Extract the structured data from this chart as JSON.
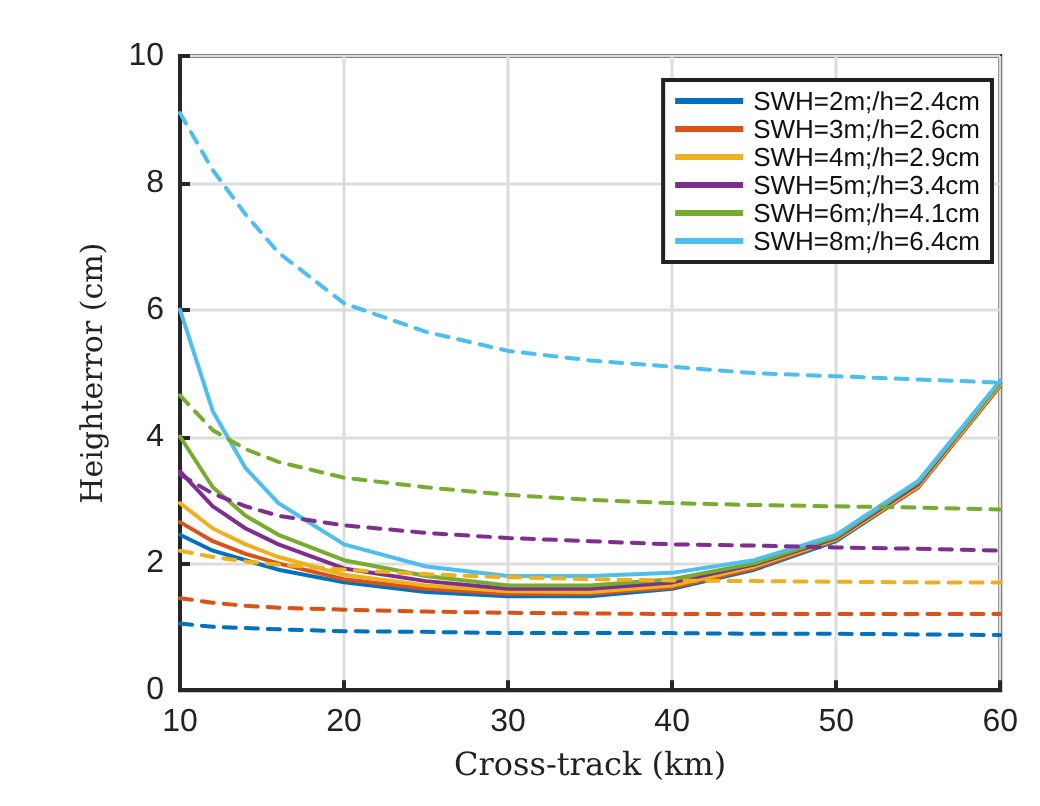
{
  "chart_data": {
    "type": "line",
    "xlabel": "Cross-track (km)",
    "ylabel": "Heighterror (cm)",
    "x": [
      10,
      12,
      14,
      16,
      20,
      25,
      30,
      35,
      40,
      45,
      50,
      55,
      60
    ],
    "xlim": [
      10,
      60
    ],
    "xticks": [
      10,
      20,
      30,
      40,
      50,
      60
    ],
    "ylim": [
      0,
      10
    ],
    "yticks": [
      0,
      2,
      4,
      6,
      8,
      10
    ],
    "grid": true,
    "legend": "top right",
    "marker": "none",
    "series": [
      {
        "name": "SWH=2m;/h=2.4cm",
        "color": "#0072bd",
        "line_style": "solid",
        "values": [
          2.45,
          2.2,
          2.05,
          1.9,
          1.7,
          1.55,
          1.48,
          1.48,
          1.6,
          1.9,
          2.35,
          3.2,
          4.8
        ]
      },
      {
        "name": "SWH=3m;/h=2.6cm",
        "color": "#d95319",
        "line_style": "solid",
        "values": [
          2.65,
          2.35,
          2.15,
          2.0,
          1.75,
          1.6,
          1.52,
          1.52,
          1.62,
          1.92,
          2.37,
          3.2,
          4.8
        ]
      },
      {
        "name": "SWH=4m;/h=2.9cm",
        "color": "#edb120",
        "line_style": "solid",
        "values": [
          2.95,
          2.55,
          2.3,
          2.1,
          1.82,
          1.65,
          1.56,
          1.55,
          1.65,
          1.95,
          2.38,
          3.22,
          4.82
        ]
      },
      {
        "name": "SWH=5m;/h=3.4cm",
        "color": "#7e2f8e",
        "line_style": "solid",
        "values": [
          3.45,
          2.9,
          2.55,
          2.3,
          1.92,
          1.72,
          1.6,
          1.6,
          1.7,
          1.98,
          2.4,
          3.25,
          4.85
        ]
      },
      {
        "name": "SWH=6m;/h=4.1cm",
        "color": "#77ac30",
        "line_style": "solid",
        "values": [
          4.0,
          3.2,
          2.75,
          2.45,
          2.05,
          1.8,
          1.65,
          1.65,
          1.75,
          2.0,
          2.42,
          3.28,
          4.85
        ]
      },
      {
        "name": "SWH=8m;/h=6.4cm",
        "color": "#4dbeee",
        "line_style": "solid",
        "values": [
          6.0,
          4.4,
          3.5,
          2.95,
          2.3,
          1.95,
          1.8,
          1.8,
          1.85,
          2.05,
          2.45,
          3.3,
          4.88
        ]
      },
      {
        "color": "#0072bd",
        "line_style": "dashed",
        "values": [
          1.05,
          1.0,
          0.98,
          0.96,
          0.93,
          0.92,
          0.9,
          0.9,
          0.9,
          0.89,
          0.89,
          0.88,
          0.87
        ]
      },
      {
        "color": "#d95319",
        "line_style": "dashed",
        "values": [
          1.45,
          1.38,
          1.33,
          1.3,
          1.27,
          1.24,
          1.22,
          1.21,
          1.2,
          1.2,
          1.2,
          1.2,
          1.2
        ]
      },
      {
        "color": "#edb120",
        "line_style": "dashed",
        "values": [
          2.2,
          2.1,
          2.03,
          1.98,
          1.9,
          1.83,
          1.78,
          1.75,
          1.73,
          1.72,
          1.71,
          1.7,
          1.7
        ]
      },
      {
        "color": "#7e2f8e",
        "line_style": "dashed",
        "values": [
          3.4,
          3.1,
          2.9,
          2.75,
          2.6,
          2.48,
          2.4,
          2.35,
          2.3,
          2.28,
          2.25,
          2.23,
          2.2
        ]
      },
      {
        "color": "#77ac30",
        "line_style": "dashed",
        "values": [
          4.65,
          4.1,
          3.8,
          3.6,
          3.35,
          3.2,
          3.08,
          3.0,
          2.95,
          2.92,
          2.9,
          2.88,
          2.85
        ]
      },
      {
        "color": "#4dbeee",
        "line_style": "dashed",
        "values": [
          9.1,
          8.2,
          7.5,
          6.9,
          6.1,
          5.65,
          5.35,
          5.2,
          5.1,
          5.0,
          4.95,
          4.9,
          4.85
        ]
      }
    ]
  }
}
